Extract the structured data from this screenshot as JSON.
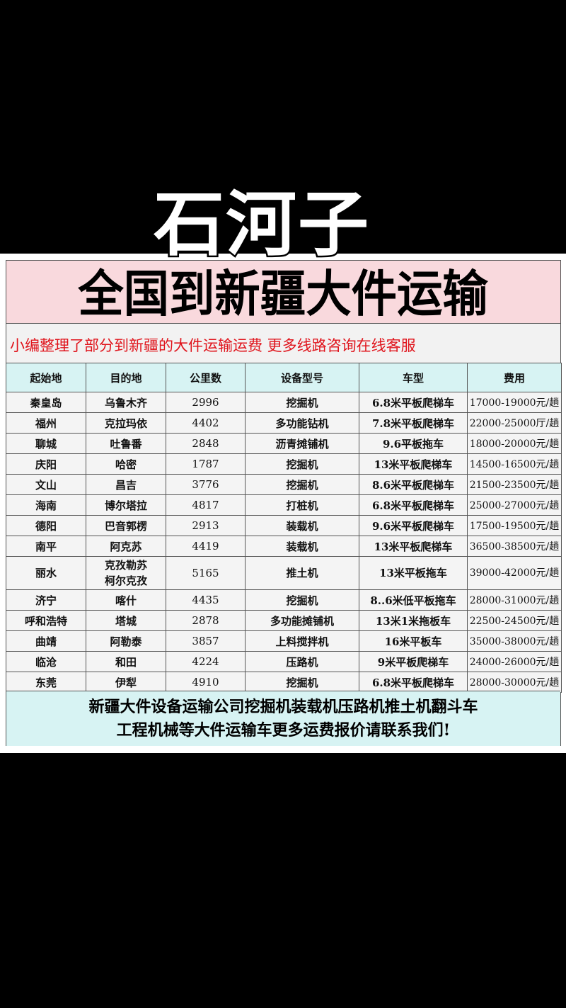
{
  "overlay_title": "石河子",
  "title": "全国到新疆大件运输",
  "subtitle": "小编整理了部分到新疆的大件运输运费 更多线路咨询在线客服",
  "colors": {
    "title_bg": "#f9d9dd",
    "header_bg": "#d7f3f3",
    "subtitle_text": "#e0141c"
  },
  "table": {
    "headers": [
      "起始地",
      "目的地",
      "公里数",
      "设备型号",
      "车型",
      "费用"
    ],
    "rows": [
      [
        "秦皇岛",
        "乌鲁木齐",
        "2996",
        "挖掘机",
        "6.8米平板爬梯车",
        "17000-19000元/趟"
      ],
      [
        "福州",
        "克拉玛依",
        "4402",
        "多功能钻机",
        "7.8米平板爬梯车",
        "22000-25000厅/趟"
      ],
      [
        "聊城",
        "吐鲁番",
        "2848",
        "沥青摊铺机",
        "9.6平板拖车",
        "18000-20000元/趟"
      ],
      [
        "庆阳",
        "哈密",
        "1787",
        "挖掘机",
        "13米平板爬梯车",
        "14500-16500元/趟"
      ],
      [
        "文山",
        "昌吉",
        "3776",
        "挖掘机",
        "8.6米平板爬梯车",
        "21500-23500元/趟"
      ],
      [
        "海南",
        "博尔塔拉",
        "4817",
        "打桩机",
        "6.8米平板爬梯车",
        "25000-27000元/趟"
      ],
      [
        "德阳",
        "巴音郭楞",
        "2913",
        "装载机",
        "9.6米平板爬梯车",
        "17500-19500元/趟"
      ],
      [
        "南平",
        "阿克苏",
        "4419",
        "装载机",
        "13米平板爬梯车",
        "36500-38500元/趟"
      ],
      [
        "丽水",
        "克孜勒苏\n柯尔克孜",
        "5165",
        "推土机",
        "13米平板拖车",
        "39000-42000元/趟"
      ],
      [
        "济宁",
        "喀什",
        "4435",
        "挖掘机",
        "8..6米低平板拖车",
        "28000-31000元/趟"
      ],
      [
        "呼和浩特",
        "塔城",
        "2878",
        "多功能摊铺机",
        "13米1米拖板车",
        "22500-24500元/趟"
      ],
      [
        "曲靖",
        "阿勒泰",
        "3857",
        "上料搅拌机",
        "16米平板车",
        "35000-38000元/趟"
      ],
      [
        "临沧",
        "和田",
        "4224",
        "压路机",
        "9米平板爬梯车",
        "24000-26000元/趟"
      ],
      [
        "东莞",
        "伊犁",
        "4910",
        "挖掘机",
        "6.8米平板爬梯车",
        "28000-30000元/趟"
      ]
    ]
  },
  "footer": {
    "line1": "新疆大件设备运输公司挖掘机装载机压路机推土机翻斗车",
    "line2": "工程机械等大件运输车更多运费报价请联系我们!"
  }
}
